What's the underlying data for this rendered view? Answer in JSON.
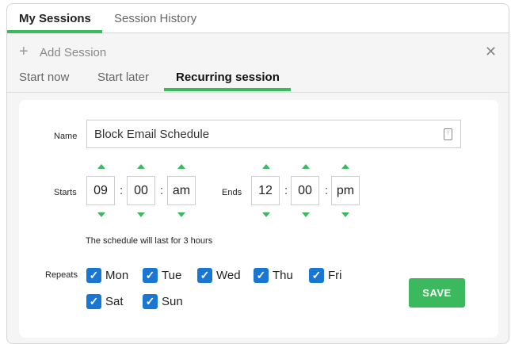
{
  "tabs": [
    {
      "label": "My Sessions",
      "active": true
    },
    {
      "label": "Session History",
      "active": false
    }
  ],
  "panel": {
    "title": "Add Session",
    "add_icon": "plus-icon",
    "close_icon": "close-icon"
  },
  "subtabs": [
    {
      "label": "Start now"
    },
    {
      "label": "Start later"
    },
    {
      "label": "Recurring session",
      "active": true
    }
  ],
  "form": {
    "name_label": "Name",
    "name_value": "Block Email Schedule",
    "starts_label": "Starts",
    "start": {
      "hour": "09",
      "minute": "00",
      "ampm": "am"
    },
    "ends_label": "Ends",
    "end": {
      "hour": "12",
      "minute": "00",
      "ampm": "pm"
    },
    "separator": ":",
    "duration_text": "The schedule will last for 3 hours",
    "repeats_label": "Repeats",
    "days": [
      {
        "label": "Mon",
        "checked": true
      },
      {
        "label": "Tue",
        "checked": true
      },
      {
        "label": "Wed",
        "checked": true
      },
      {
        "label": "Thu",
        "checked": true
      },
      {
        "label": "Fri",
        "checked": true
      },
      {
        "label": "Sat",
        "checked": true
      },
      {
        "label": "Sun",
        "checked": true
      }
    ],
    "save_label": "SAVE"
  },
  "colors": {
    "accent": "#3cb95e",
    "checkbox": "#1976d2"
  }
}
